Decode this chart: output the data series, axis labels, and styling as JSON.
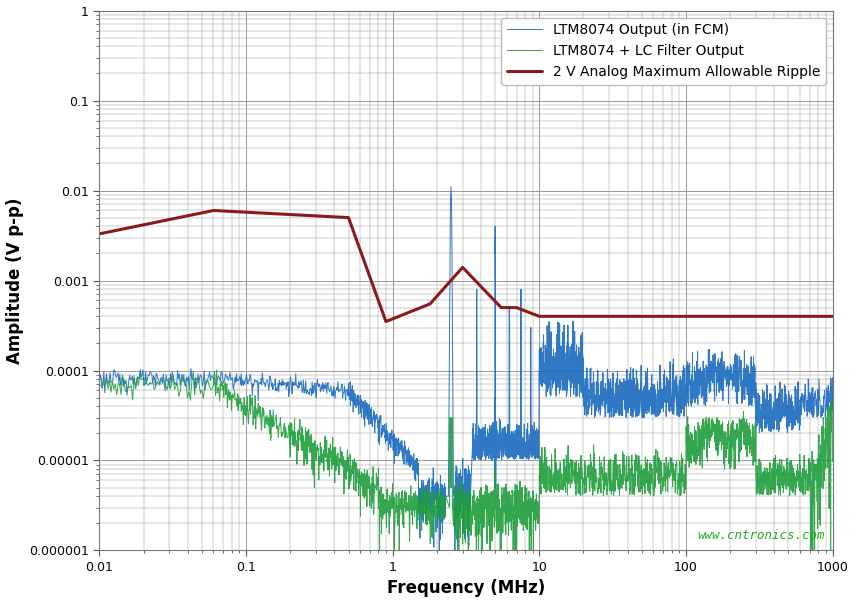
{
  "title": "",
  "xlabel": "Frequency (MHz)",
  "ylabel": "Amplitude (V p-p)",
  "xlim": [
    0.01,
    1000
  ],
  "ylim": [
    1e-06,
    1
  ],
  "background_color": "#ffffff",
  "watermark": "www.cntronics.com",
  "watermark_color": "#22aa22",
  "legend_entries": [
    "LTM8074 Output (in FCM)",
    "LTM8074 + LC Filter Output",
    "2 V Analog Maximum Allowable Ripple"
  ],
  "legend_colors": [
    "#1a6bbf",
    "#1f9e3c",
    "#8b1a1a"
  ],
  "grid_color": "#999999",
  "red_line_x": [
    0.01,
    0.06,
    0.5,
    0.9,
    1.8,
    3.0,
    5.5,
    7.0,
    10.0,
    1000
  ],
  "red_line_y": [
    0.0033,
    0.006,
    0.005,
    0.00035,
    0.00055,
    0.0014,
    0.0005,
    0.0005,
    0.0004,
    0.0004
  ]
}
